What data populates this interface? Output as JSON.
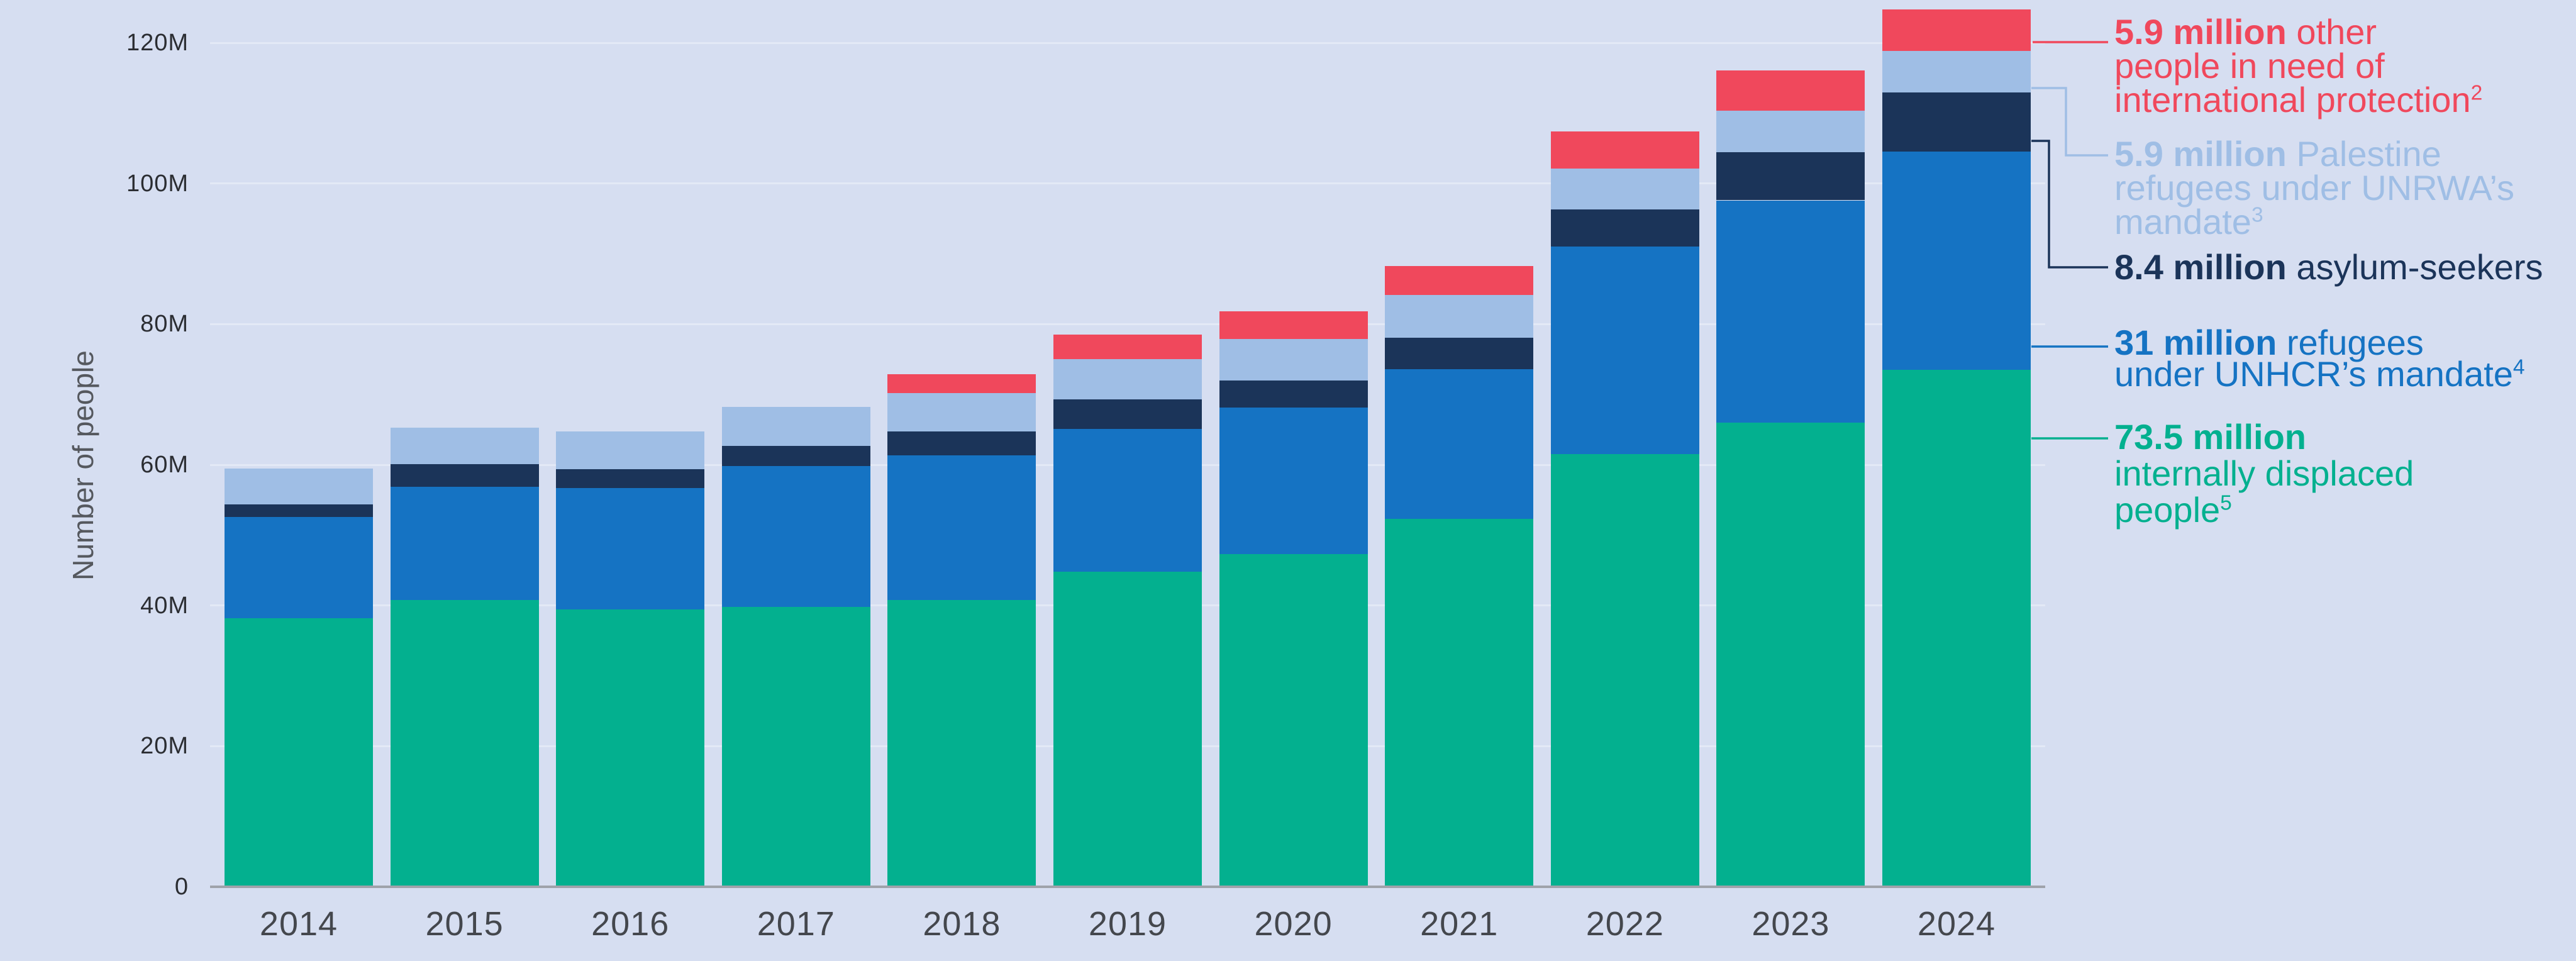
{
  "colors": {
    "background": "#D6DEF1",
    "gridline": "#E3E9F6",
    "axis_line": "#9FA2AA",
    "tick_text": "#2B2D32",
    "year_text": "#44474D",
    "axis_title_text": "#55585E"
  },
  "y_axis": {
    "label": "Number of people",
    "ticks": [
      {
        "label": "0",
        "value": 0
      },
      {
        "label": "20M",
        "value": 20
      },
      {
        "label": "40M",
        "value": 40
      },
      {
        "label": "60M",
        "value": 60
      },
      {
        "label": "80M",
        "value": 80
      },
      {
        "label": "100M",
        "value": 100
      },
      {
        "label": "120M",
        "value": 120
      }
    ]
  },
  "x_axis": {
    "years": [
      "2014",
      "2015",
      "2016",
      "2017",
      "2018",
      "2019",
      "2020",
      "2021",
      "2022",
      "2023",
      "2024"
    ]
  },
  "chart_data": {
    "type": "bar",
    "stacked": true,
    "units": "millions of people",
    "categories": [
      "2014",
      "2015",
      "2016",
      "2017",
      "2018",
      "2019",
      "2020",
      "2021",
      "2022",
      "2023",
      "2024"
    ],
    "series": [
      {
        "name": "internally displaced people",
        "color": "#03B08F",
        "values": [
          38.2,
          40.8,
          39.4,
          39.8,
          40.8,
          44.8,
          47.3,
          52.3,
          61.5,
          66.0,
          73.5
        ]
      },
      {
        "name": "refugees under UNHCR's mandate",
        "color": "#1573C3",
        "values": [
          14.4,
          16.1,
          17.3,
          20.0,
          20.5,
          20.3,
          20.8,
          21.3,
          29.5,
          31.6,
          31.0
        ]
      },
      {
        "name": "asylum-seekers",
        "color": "#1B3459",
        "values": [
          1.8,
          3.2,
          2.7,
          2.9,
          3.4,
          4.2,
          3.9,
          4.5,
          5.3,
          6.8,
          8.4
        ]
      },
      {
        "name": "Palestine refugees under UNRWA's mandate",
        "color": "#9FBEE5",
        "values": [
          5.1,
          5.2,
          5.3,
          5.5,
          5.5,
          5.7,
          5.9,
          6.0,
          5.8,
          5.9,
          5.9
        ]
      },
      {
        "name": "other people in need of international protection",
        "color": "#F0485C",
        "values": [
          0,
          0,
          0,
          0,
          2.7,
          3.5,
          3.9,
          4.2,
          5.3,
          5.8,
          5.9
        ]
      }
    ],
    "title": "",
    "xlabel": "",
    "ylabel": "Number of people",
    "ylim": [
      0,
      125
    ],
    "grid": true,
    "legend_position": "right"
  },
  "legend": {
    "items": [
      {
        "bold": "5.9 million",
        "lines": [
          "other",
          "people in need of",
          "international protection"
        ],
        "sup": "2",
        "color": "#F0485C"
      },
      {
        "bold": "5.9 million",
        "lines": [
          "Palestine",
          "refugees under UNRWA’s",
          "mandate"
        ],
        "sup": "3",
        "color": "#9FBEE5"
      },
      {
        "bold": "8.4 million",
        "lines": [
          "asylum-seekers"
        ],
        "sup": "",
        "color": "#1B3459"
      },
      {
        "bold": "31 million",
        "lines": [
          "refugees",
          "under UNHCR’s mandate"
        ],
        "sup": "4",
        "color": "#1573C3"
      },
      {
        "bold": "73.5 million",
        "lines": [
          "internally displaced",
          "people"
        ],
        "sup": "5",
        "color": "#03B08F"
      }
    ]
  }
}
